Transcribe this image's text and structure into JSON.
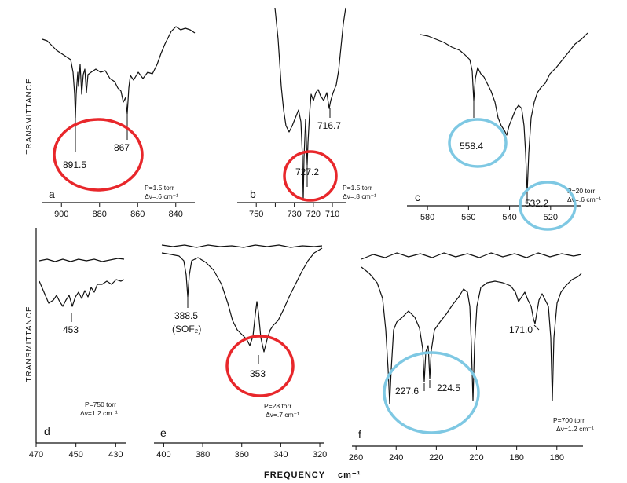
{
  "figure": {
    "y_axis_label": "TRANSMITTANCE",
    "x_axis_label": "FREQUENCY",
    "x_axis_unit": "cm⁻¹"
  },
  "chart_data": [
    {
      "panel": "a",
      "type": "line",
      "xlim": [
        910,
        830
      ],
      "xticks": [
        900,
        880,
        860,
        840
      ],
      "peaks": [
        {
          "x": 891.5,
          "label": "891.5"
        },
        {
          "x": 867,
          "label": "867"
        }
      ],
      "conditions": [
        "P=1.5 torr",
        "Δν=.6 cm⁻¹"
      ],
      "highlight": {
        "color": "#e8272b",
        "x_center": 879
      }
    },
    {
      "panel": "b",
      "type": "line",
      "xlim": [
        760,
        703
      ],
      "xticks": [
        750,
        740,
        730,
        720,
        710
      ],
      "tick_labels": [
        "750",
        "",
        "730",
        "720",
        "710"
      ],
      "peaks": [
        {
          "x": 727.2,
          "label": "727.2"
        },
        {
          "x": 716.7,
          "label": "716.7"
        }
      ],
      "conditions": [
        "P=1.5 torr",
        "Δν=.8 cm⁻¹"
      ],
      "highlight": {
        "color": "#e8272b",
        "x_center": 728
      }
    },
    {
      "panel": "c",
      "type": "line",
      "xlim": [
        590,
        505
      ],
      "xticks": [
        580,
        560,
        540,
        520
      ],
      "peaks": [
        {
          "x": 558.4,
          "label": "558.4"
        },
        {
          "x": 532.2,
          "label": "532.2"
        }
      ],
      "conditions": [
        "P=20 torr",
        "Δν=.6 cm⁻¹"
      ],
      "highlights": [
        {
          "color": "#7ec8e3",
          "x_center": 557
        },
        {
          "color": "#7ec8e3",
          "x_center": 527
        }
      ]
    },
    {
      "panel": "d",
      "type": "line",
      "xlim": [
        470,
        425
      ],
      "xticks": [
        470,
        450,
        430
      ],
      "peaks": [
        {
          "x": 453,
          "label": "453"
        }
      ],
      "conditions": [
        "P=750 torr",
        "Δν=1.2 cm⁻¹"
      ]
    },
    {
      "panel": "e",
      "type": "line",
      "xlim": [
        405,
        318
      ],
      "xticks": [
        400,
        380,
        360,
        340,
        320
      ],
      "peaks": [
        {
          "x": 388.5,
          "label": "388.5",
          "sublabel": "(SOF₂)"
        },
        {
          "x": 353,
          "label": "353"
        }
      ],
      "conditions": [
        "P=28 torr",
        "Δν=.7 cm⁻¹"
      ],
      "highlight": {
        "color": "#e8272b",
        "x_center": 353
      }
    },
    {
      "panel": "f",
      "type": "line",
      "xlim": [
        262,
        147
      ],
      "xticks": [
        260,
        240,
        220,
        200,
        180,
        160
      ],
      "peaks": [
        {
          "x": 227.6,
          "label": "227.6"
        },
        {
          "x": 224.5,
          "label": "224.5"
        },
        {
          "x": 171.0,
          "label": "171.0"
        }
      ],
      "conditions": [
        "P=700 torr",
        "Δν=1.2 cm⁻¹"
      ],
      "highlight": {
        "color": "#7ec8e3",
        "x_center": 226
      }
    }
  ]
}
